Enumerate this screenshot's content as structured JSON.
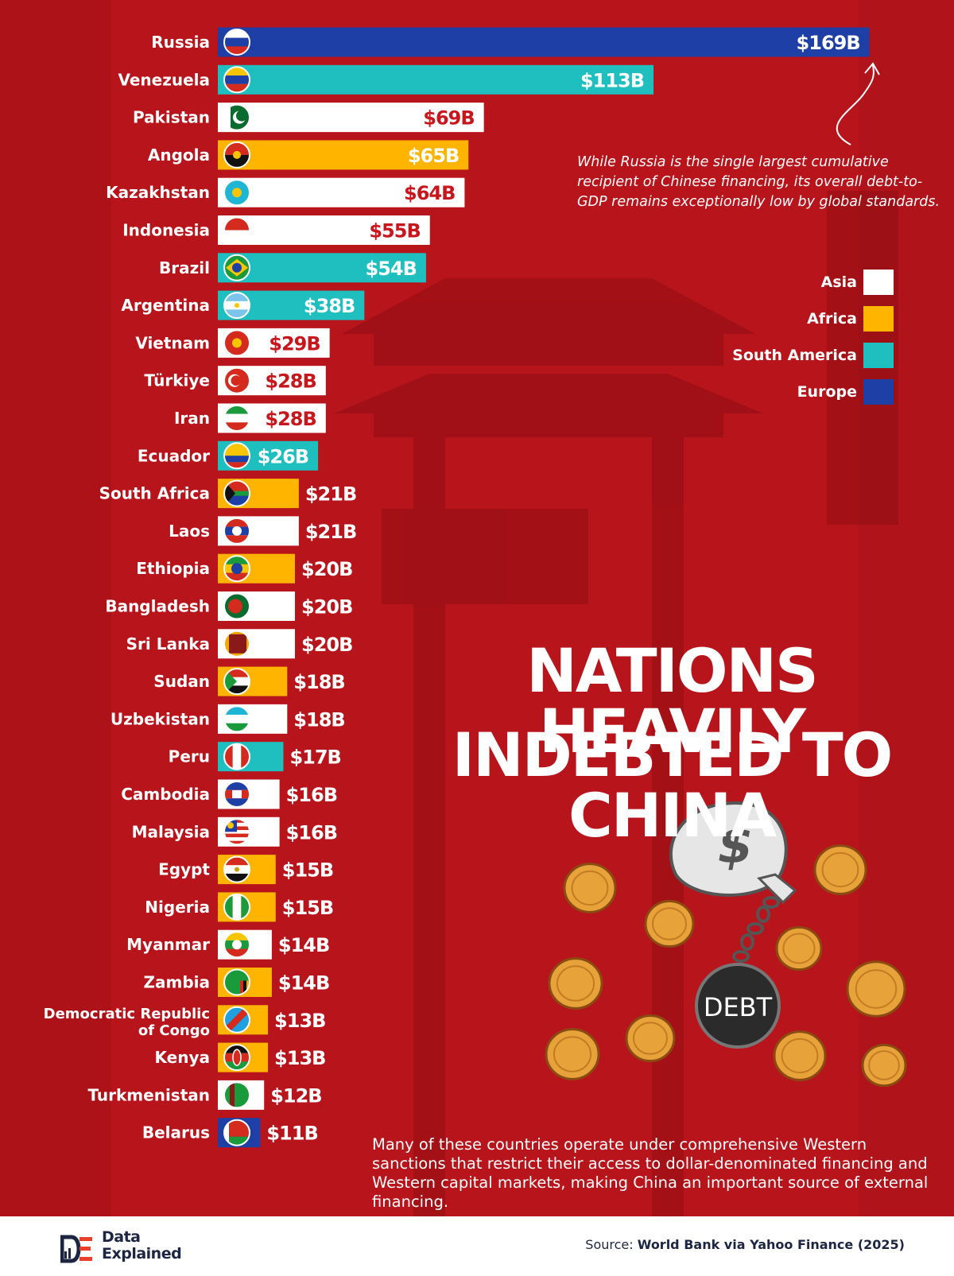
{
  "title_line1": "NATIONS HEAVILY",
  "title_line2": "INDEBTED TO CHINA",
  "annotation_russia": "While Russia is the single largest cumulative recipient of Chinese financing, its overall debt-to-GDP remains exceptionally low by global standards.",
  "annotation_sanctions": "Many of these countries operate under comprehensive Western sanctions that restrict their access to dollar-denominated financing and Western capital markets, making China an important source of external financing.",
  "illustration": {
    "weight_label": "DEBT",
    "bag_symbol": "$"
  },
  "legend": [
    {
      "label": "Asia",
      "color": "#ffffff"
    },
    {
      "label": "Africa",
      "color": "#ffb400"
    },
    {
      "label": "South America",
      "color": "#1fbfbf"
    },
    {
      "label": "Europe",
      "color": "#1d3fa6"
    }
  ],
  "footer": {
    "logo_line1": "Data",
    "logo_line2": "Explained",
    "source_prefix": "Source:",
    "source_text": "World Bank via Yahoo Finance (2025)"
  },
  "colors": {
    "background": "#b8141b",
    "Asia": "#ffffff",
    "Africa": "#ffb400",
    "South America": "#1fbfbf",
    "Europe": "#1d3fa6",
    "value_on_light": "#c8161d"
  },
  "chart_data": {
    "type": "bar",
    "orientation": "horizontal",
    "unit": "USD billions",
    "legend_position": "right",
    "categories": [
      "Russia",
      "Venezuela",
      "Pakistan",
      "Angola",
      "Kazakhstan",
      "Indonesia",
      "Brazil",
      "Argentina",
      "Vietnam",
      "Türkiye",
      "Iran",
      "Ecuador",
      "South Africa",
      "Laos",
      "Ethiopia",
      "Bangladesh",
      "Sri Lanka",
      "Sudan",
      "Uzbekistan",
      "Peru",
      "Cambodia",
      "Malaysia",
      "Egypt",
      "Nigeria",
      "Myanmar",
      "Zambia",
      "Democratic Republic|of Congo",
      "Kenya",
      "Turkmenistan",
      "Belarus"
    ],
    "values": [
      169,
      113,
      69,
      65,
      64,
      55,
      54,
      38,
      29,
      28,
      28,
      26,
      21,
      21,
      20,
      20,
      20,
      18,
      18,
      17,
      16,
      16,
      15,
      15,
      14,
      14,
      13,
      13,
      12,
      11
    ],
    "value_labels": [
      "$169B",
      "$113B",
      "$69B",
      "$65B",
      "$64B",
      "$55B",
      "$54B",
      "$38B",
      "$29B",
      "$28B",
      "$28B",
      "$26B",
      "$21B",
      "$21B",
      "$20B",
      "$20B",
      "$20B",
      "$18B",
      "$18B",
      "$17B",
      "$16B",
      "$16B",
      "$15B",
      "$15B",
      "$14B",
      "$14B",
      "$13B",
      "$13B",
      "$12B",
      "$11B"
    ],
    "regions": [
      "Europe",
      "South America",
      "Asia",
      "Africa",
      "Asia",
      "Asia",
      "South America",
      "South America",
      "Asia",
      "Asia",
      "Asia",
      "South America",
      "Africa",
      "Asia",
      "Africa",
      "Asia",
      "Asia",
      "Africa",
      "Asia",
      "South America",
      "Asia",
      "Asia",
      "Africa",
      "Africa",
      "Asia",
      "Africa",
      "Africa",
      "Africa",
      "Asia",
      "Europe"
    ],
    "flags": [
      "russia",
      "venezuela",
      "pakistan",
      "angola",
      "kazakhstan",
      "indonesia",
      "brazil",
      "argentina",
      "vietnam",
      "turkiye",
      "iran",
      "ecuador",
      "south-africa",
      "laos",
      "ethiopia",
      "bangladesh",
      "sri-lanka",
      "sudan",
      "uzbekistan",
      "peru",
      "cambodia",
      "malaysia",
      "egypt",
      "nigeria",
      "myanmar",
      "zambia",
      "dr-congo",
      "kenya",
      "turkmenistan",
      "belarus"
    ]
  }
}
